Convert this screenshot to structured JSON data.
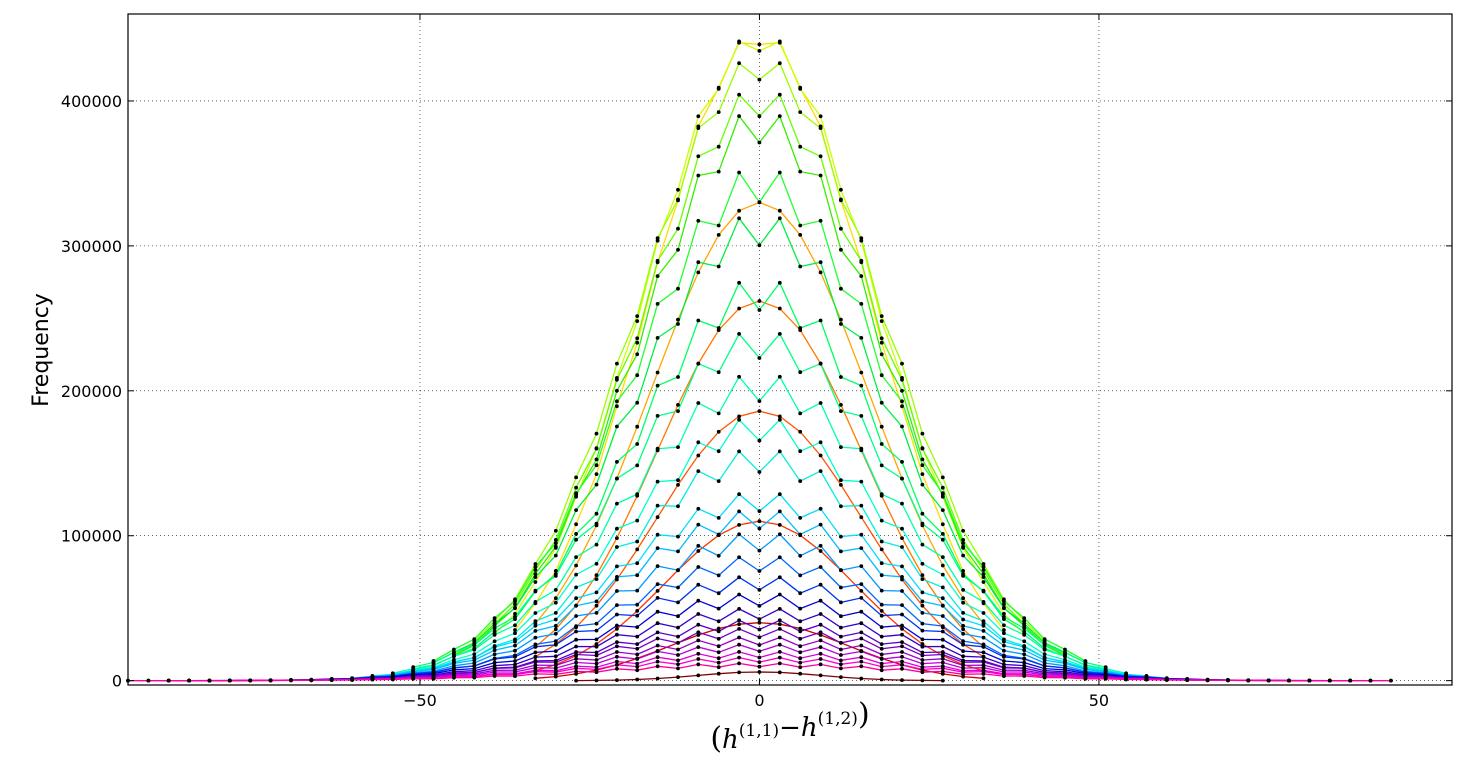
{
  "chart_data": {
    "type": "line",
    "title": "",
    "xlabel": "(h^(1,1) − h^(1,2))",
    "ylabel": "Frequency",
    "xlim": [
      -93,
      102
    ],
    "ylim": [
      -3000,
      460000
    ],
    "grid": true,
    "legend": "none",
    "xticks": [
      -50,
      0,
      50
    ],
    "xtick_labels": [
      "−50",
      "0",
      "50"
    ],
    "yticks": [
      0,
      100000,
      200000,
      300000,
      400000
    ],
    "ytick_labels": [
      "0",
      "100000",
      "200000",
      "300000",
      "400000"
    ],
    "x_step": 3,
    "note_markers": "black dots at every sample point",
    "series": [
      {
        "color": "#800000",
        "peak": 6000,
        "half_width": 9,
        "x_range": [
          -27,
          27
        ],
        "even_dip": 0.0
      },
      {
        "color": "#cc0000",
        "peak": 40000,
        "half_width": 13,
        "x_range": [
          -33,
          33
        ],
        "even_dip": 0.0
      },
      {
        "color": "#ff3300",
        "peak": 110000,
        "half_width": 14,
        "x_range": [
          -33,
          33
        ],
        "even_dip": 0.0
      },
      {
        "color": "#ff5500",
        "peak": 186000,
        "half_width": 15,
        "x_range": [
          -33,
          33
        ],
        "even_dip": 0.0
      },
      {
        "color": "#ff7700",
        "peak": 262000,
        "half_width": 15,
        "x_range": [
          -33,
          33
        ],
        "even_dip": 0.0
      },
      {
        "color": "#ffa500",
        "peak": 330000,
        "half_width": 16,
        "x_range": [
          -33,
          33
        ],
        "even_dip": 0.0
      },
      {
        "color": "#ffdd00",
        "peak": 448000,
        "half_width": 16,
        "x_range": [
          -36,
          36
        ],
        "even_dip": 0.02
      },
      {
        "color": "#ccff00",
        "peak": 448000,
        "half_width": 17,
        "x_range": [
          -39,
          39
        ],
        "even_dip": 0.03
      },
      {
        "color": "#99ff00",
        "peak": 432000,
        "half_width": 18,
        "x_range": [
          -42,
          42
        ],
        "even_dip": 0.04
      },
      {
        "color": "#66ff00",
        "peak": 410000,
        "half_width": 18,
        "x_range": [
          -45,
          45
        ],
        "even_dip": 0.05
      },
      {
        "color": "#33ee00",
        "peak": 395000,
        "half_width": 18,
        "x_range": [
          -45,
          45
        ],
        "even_dip": 0.06
      },
      {
        "color": "#22ff33",
        "peak": 355000,
        "half_width": 19,
        "x_range": [
          -48,
          48
        ],
        "even_dip": 0.07
      },
      {
        "color": "#00ee44",
        "peak": 323000,
        "half_width": 19,
        "x_range": [
          -48,
          48
        ],
        "even_dip": 0.07
      },
      {
        "color": "#00ff66",
        "peak": 278000,
        "half_width": 19,
        "x_range": [
          -51,
          51
        ],
        "even_dip": 0.08
      },
      {
        "color": "#00ff88",
        "peak": 242000,
        "half_width": 20,
        "x_range": [
          -51,
          51
        ],
        "even_dip": 0.08
      },
      {
        "color": "#00ffaa",
        "peak": 212000,
        "half_width": 20,
        "x_range": [
          -54,
          54
        ],
        "even_dip": 0.09
      },
      {
        "color": "#00ffcc",
        "peak": 182000,
        "half_width": 20,
        "x_range": [
          -54,
          54
        ],
        "even_dip": 0.09
      },
      {
        "color": "#00eedd",
        "peak": 160000,
        "half_width": 20,
        "x_range": [
          -57,
          57
        ],
        "even_dip": 0.1
      },
      {
        "color": "#00ddff",
        "peak": 130000,
        "half_width": 21,
        "x_range": [
          -57,
          57
        ],
        "even_dip": 0.1
      },
      {
        "color": "#00bbff",
        "peak": 118000,
        "half_width": 21,
        "x_range": [
          -60,
          60
        ],
        "even_dip": 0.11
      },
      {
        "color": "#0099ff",
        "peak": 102000,
        "half_width": 21,
        "x_range": [
          -60,
          60
        ],
        "even_dip": 0.12
      },
      {
        "color": "#0066ff",
        "peak": 86000,
        "half_width": 21,
        "x_range": [
          -66,
          66
        ],
        "even_dip": 0.12
      },
      {
        "color": "#0033ee",
        "peak": 72000,
        "half_width": 22,
        "x_range": [
          -69,
          69
        ],
        "even_dip": 0.13
      },
      {
        "color": "#0000dd",
        "peak": 60000,
        "half_width": 22,
        "x_range": [
          -75,
          75
        ],
        "even_dip": 0.14
      },
      {
        "color": "#3300cc",
        "peak": 50000,
        "half_width": 22,
        "x_range": [
          -78,
          78
        ],
        "even_dip": 0.15
      },
      {
        "color": "#5500cc",
        "peak": 42000,
        "half_width": 22,
        "x_range": [
          -81,
          81
        ],
        "even_dip": 0.16
      },
      {
        "color": "#7700cc",
        "peak": 36000,
        "half_width": 23,
        "x_range": [
          -84,
          84
        ],
        "even_dip": 0.17
      },
      {
        "color": "#9900cc",
        "peak": 30000,
        "half_width": 23,
        "x_range": [
          -87,
          87
        ],
        "even_dip": 0.18
      },
      {
        "color": "#bb00dd",
        "peak": 25000,
        "half_width": 23,
        "x_range": [
          -87,
          87
        ],
        "even_dip": 0.19
      },
      {
        "color": "#dd00dd",
        "peak": 20000,
        "half_width": 23,
        "x_range": [
          -90,
          90
        ],
        "even_dip": 0.2
      },
      {
        "color": "#ff00cc",
        "peak": 16000,
        "half_width": 24,
        "x_range": [
          -93,
          93
        ],
        "even_dip": 0.2
      },
      {
        "color": "#ff0099",
        "peak": 12000,
        "half_width": 24,
        "x_range": [
          -93,
          93
        ],
        "even_dip": 0.2
      }
    ]
  }
}
